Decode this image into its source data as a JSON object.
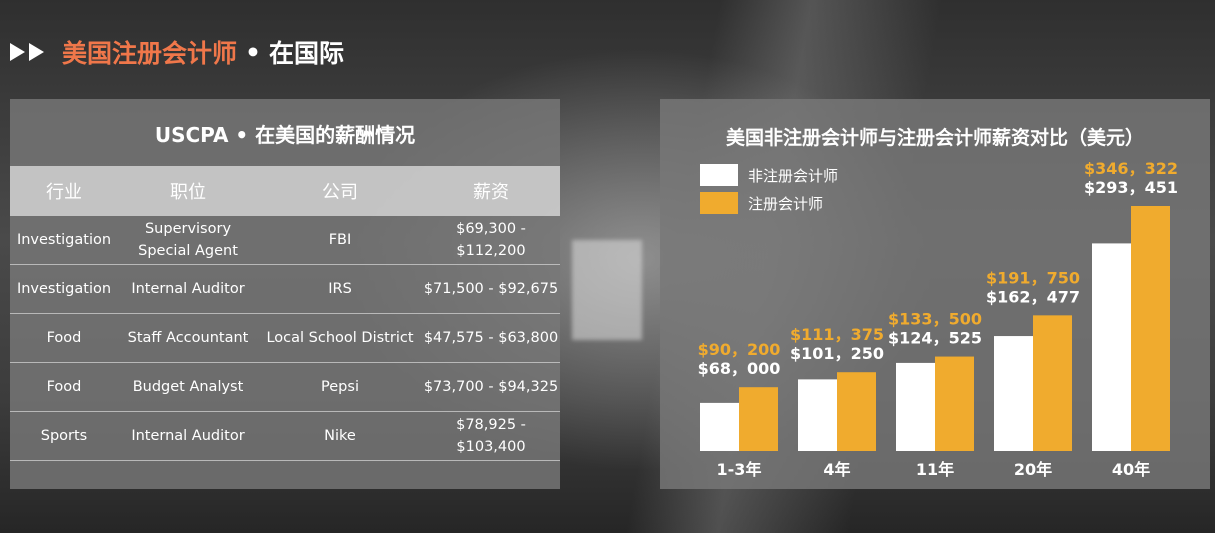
{
  "header": {
    "title_main": "美国注册会计师",
    "title_dot": "•",
    "title_sub": "在国际"
  },
  "salary_table": {
    "title": "USCPA • 在美国的薪酬情况",
    "columns": [
      "行业",
      "职位",
      "公司",
      "薪资"
    ],
    "rows": [
      [
        "Investigation",
        "Supervisory Special Agent",
        "FBI",
        "$69,300 - $112,200"
      ],
      [
        "Investigation",
        "Internal Auditor",
        "IRS",
        "$71,500 - $92,675"
      ],
      [
        "Food",
        "Staff   Accountant",
        "Local School District",
        "$47,575 - $63,800"
      ],
      [
        "Food",
        "Budget Analyst",
        "Pepsi",
        "$73,700 - $94,325"
      ],
      [
        "Sports",
        "Internal Auditor",
        "Nike",
        "$78,925 - $103,400"
      ]
    ]
  },
  "chart_data": {
    "type": "bar",
    "title": "美国非注册会计师与注册会计师薪资对比（美元）",
    "categories": [
      "1-3年",
      "4年",
      "11年",
      "20年",
      "40年"
    ],
    "series": [
      {
        "name": "非注册会计师",
        "color": "#ffffff",
        "values": [
          68000,
          101250,
          124525,
          162477,
          293451
        ],
        "labels": [
          "$68，000",
          "$101，250",
          "$124，525",
          "$162，477",
          "$293，451"
        ]
      },
      {
        "name": "注册会计师",
        "color": "#f0ab2e",
        "values": [
          90200,
          111375,
          133500,
          191750,
          346322
        ],
        "labels": [
          "$90，200",
          "$111，375",
          "$133，500",
          "$191，750",
          "$346，322"
        ]
      }
    ],
    "legend_position": "top-left",
    "grid": false
  },
  "colors": {
    "accent_orange": "#f0774a",
    "bar_gold": "#f0ab2e",
    "label_gold": "#f0ab2e"
  }
}
